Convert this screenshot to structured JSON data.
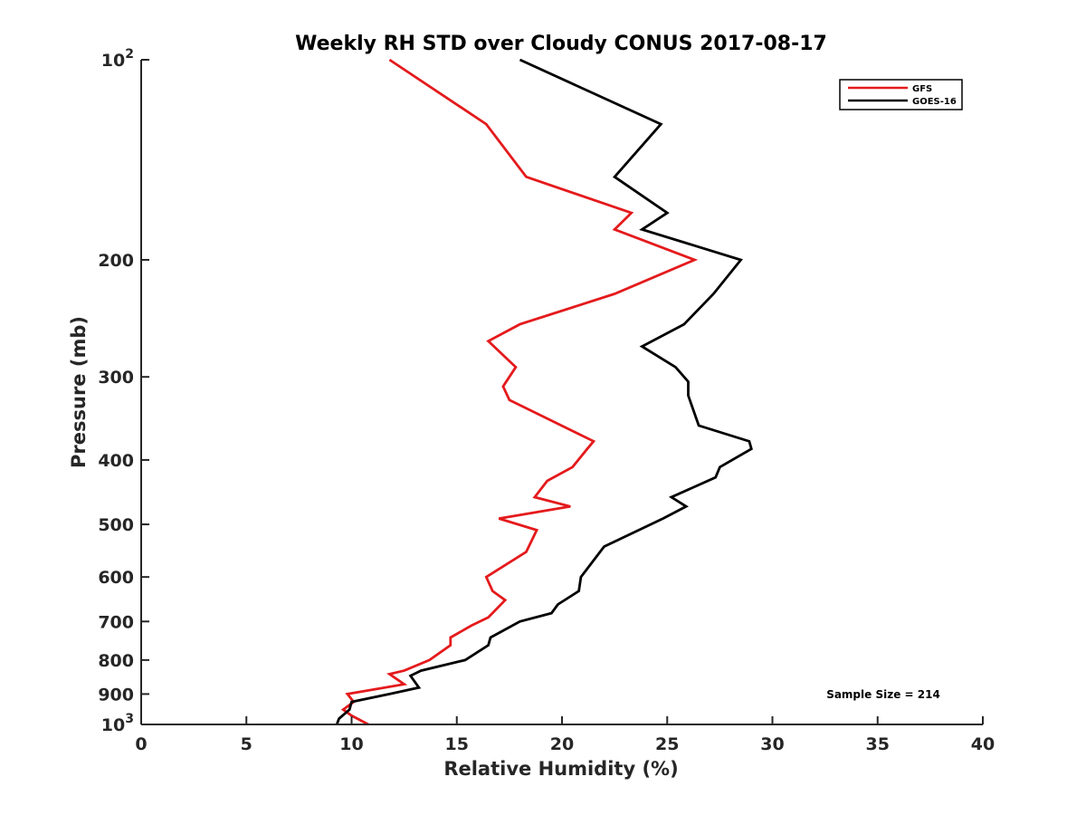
{
  "chart_data": {
    "type": "line",
    "title": "Weekly RH STD over Cloudy CONUS 2017-08-17",
    "xlabel": "Relative Humidity (%)",
    "ylabel": "Pressure (mb)",
    "xlim": [
      0,
      40
    ],
    "ylim": [
      100,
      1000
    ],
    "y_scale": "log",
    "y_reversed": true,
    "x_ticks": [
      0,
      5,
      10,
      15,
      20,
      25,
      30,
      35,
      40
    ],
    "x_tick_labels": [
      "0",
      "5",
      "10",
      "15",
      "20",
      "25",
      "30",
      "35",
      "40"
    ],
    "y_ticks": [
      100,
      200,
      300,
      400,
      500,
      600,
      700,
      800,
      900,
      1000
    ],
    "y_tick_labels": [
      {
        "base": "10",
        "exp": "2"
      },
      {
        "base": "200"
      },
      {
        "base": "300"
      },
      {
        "base": "400"
      },
      {
        "base": "500"
      },
      {
        "base": "600"
      },
      {
        "base": "700"
      },
      {
        "base": "800"
      },
      {
        "base": "900"
      },
      {
        "base": "10",
        "exp": "3"
      }
    ],
    "legend_position": "top-right",
    "annotation": "Sample Size = 214",
    "series": [
      {
        "name": "GFS",
        "color": "#e41a1c",
        "pressure": [
          100,
          125,
          150,
          170,
          180,
          200,
          225,
          250,
          265,
          290,
          310,
          325,
          375,
          385,
          410,
          430,
          455,
          470,
          490,
          510,
          550,
          600,
          630,
          650,
          690,
          710,
          740,
          760,
          800,
          830,
          840,
          870,
          900,
          925,
          950,
          970,
          1000
        ],
        "values": [
          11.8,
          16.4,
          18.3,
          23.3,
          22.5,
          26.3,
          22.5,
          18.0,
          16.5,
          17.8,
          17.2,
          17.5,
          21.5,
          21.2,
          20.5,
          19.3,
          18.7,
          20.4,
          17.0,
          18.8,
          18.3,
          16.4,
          16.7,
          17.3,
          16.5,
          15.7,
          14.7,
          14.7,
          13.7,
          12.5,
          11.8,
          12.5,
          9.8,
          10.1,
          9.6,
          10.0,
          10.8
        ]
      },
      {
        "name": "GOES-16",
        "color": "#000000",
        "pressure": [
          100,
          125,
          150,
          170,
          180,
          200,
          225,
          250,
          270,
          290,
          305,
          320,
          355,
          375,
          385,
          410,
          425,
          455,
          470,
          490,
          540,
          600,
          630,
          660,
          680,
          700,
          740,
          760,
          800,
          830,
          845,
          880,
          900,
          925,
          950,
          980,
          1000
        ],
        "values": [
          18.0,
          24.7,
          22.5,
          25.0,
          23.8,
          28.5,
          27.2,
          25.8,
          23.8,
          25.4,
          26.0,
          26.0,
          26.5,
          28.9,
          29.0,
          27.5,
          27.3,
          25.2,
          25.9,
          24.8,
          22.0,
          20.9,
          20.8,
          19.8,
          19.5,
          18.0,
          16.6,
          16.5,
          15.4,
          13.3,
          12.8,
          13.2,
          11.8,
          10.0,
          9.9,
          9.4,
          9.3
        ]
      }
    ]
  }
}
